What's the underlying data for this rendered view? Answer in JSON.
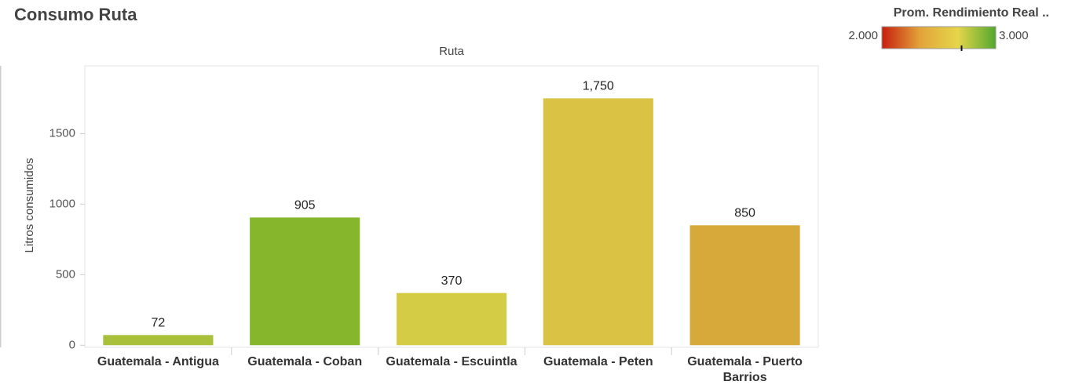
{
  "chart_data": {
    "type": "bar",
    "title": "Consumo Ruta",
    "x_header": "Ruta",
    "y_label": "Litros consumidos",
    "categories": [
      "Guatemala - Antigua",
      "Guatemala - Coban",
      "Guatemala - Escuintla",
      "Guatemala - Peten",
      "Guatemala - Puerto Barrios"
    ],
    "values": [
      72,
      905,
      370,
      1750,
      850
    ],
    "value_labels": [
      "72",
      "905",
      "370",
      "1,750",
      "850"
    ],
    "colors": [
      "#a9c13a",
      "#86b62b",
      "#d4cc44",
      "#d9c244",
      "#d7a93a"
    ],
    "ylim": [
      -15,
      1980
    ],
    "yticks": [
      0,
      500,
      1000,
      1500
    ],
    "grid": false,
    "color_legend": {
      "title": "Prom. Rendimiento Real ..",
      "min": {
        "value": 2,
        "label": "2.000"
      },
      "max": {
        "value": 3,
        "label": "3.000"
      },
      "gradient": [
        "#c81e0f",
        "#e2a33a",
        "#e5d64a",
        "#52a82e"
      ],
      "marker": 2.7
    }
  }
}
